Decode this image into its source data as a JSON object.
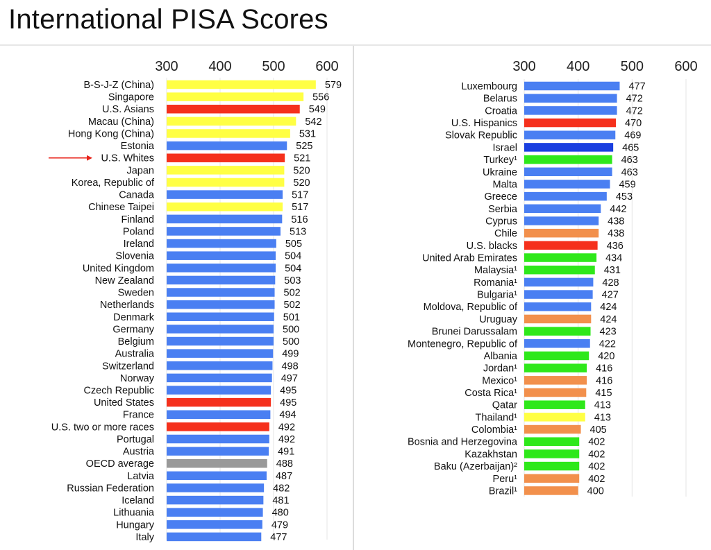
{
  "title": "International PISA Scores",
  "colors": {
    "blue": "#4a7ff2",
    "dark_blue": "#1a3fe0",
    "yellow": "#ffff44",
    "red": "#f5301c",
    "gray": "#999999",
    "green": "#2ee81a",
    "orange": "#f2904c",
    "arrow": "#e8231a"
  },
  "chart_data": [
    {
      "type": "bar",
      "orientation": "horizontal",
      "axis_ticks": [
        300,
        400,
        500,
        600
      ],
      "xlim": [
        300,
        600
      ],
      "grid": true,
      "highlight_arrow_category": "U.S. Whites",
      "bars": [
        {
          "label": "B-S-J-Z (China)",
          "value": 579,
          "color": "yellow"
        },
        {
          "label": "Singapore",
          "value": 556,
          "color": "yellow"
        },
        {
          "label": "U.S. Asians",
          "value": 549,
          "color": "red"
        },
        {
          "label": "Macau (China)",
          "value": 542,
          "color": "yellow"
        },
        {
          "label": "Hong Kong (China)",
          "value": 531,
          "color": "yellow"
        },
        {
          "label": "Estonia",
          "value": 525,
          "color": "blue"
        },
        {
          "label": "U.S. Whites",
          "value": 521,
          "color": "red"
        },
        {
          "label": "Japan",
          "value": 520,
          "color": "yellow"
        },
        {
          "label": "Korea, Republic of",
          "value": 520,
          "color": "yellow"
        },
        {
          "label": "Canada",
          "value": 517,
          "color": "blue"
        },
        {
          "label": "Chinese Taipei",
          "value": 517,
          "color": "yellow"
        },
        {
          "label": "Finland",
          "value": 516,
          "color": "blue"
        },
        {
          "label": "Poland",
          "value": 513,
          "color": "blue"
        },
        {
          "label": "Ireland",
          "value": 505,
          "color": "blue"
        },
        {
          "label": "Slovenia",
          "value": 504,
          "color": "blue"
        },
        {
          "label": "United Kingdom",
          "value": 504,
          "color": "blue"
        },
        {
          "label": "New Zealand",
          "value": 503,
          "color": "blue"
        },
        {
          "label": "Sweden",
          "value": 502,
          "color": "blue"
        },
        {
          "label": "Netherlands",
          "value": 502,
          "color": "blue"
        },
        {
          "label": "Denmark",
          "value": 501,
          "color": "blue"
        },
        {
          "label": "Germany",
          "value": 500,
          "color": "blue"
        },
        {
          "label": "Belgium",
          "value": 500,
          "color": "blue"
        },
        {
          "label": "Australia",
          "value": 499,
          "color": "blue"
        },
        {
          "label": "Switzerland",
          "value": 498,
          "color": "blue"
        },
        {
          "label": "Norway",
          "value": 497,
          "color": "blue"
        },
        {
          "label": "Czech Republic",
          "value": 495,
          "color": "blue"
        },
        {
          "label": "United States",
          "value": 495,
          "color": "red"
        },
        {
          "label": "France",
          "value": 494,
          "color": "blue"
        },
        {
          "label": "U.S. two or more races",
          "value": 492,
          "color": "red"
        },
        {
          "label": "Portugal",
          "value": 492,
          "color": "blue"
        },
        {
          "label": "Austria",
          "value": 491,
          "color": "blue"
        },
        {
          "label": "OECD average",
          "value": 488,
          "color": "gray"
        },
        {
          "label": "Latvia",
          "value": 487,
          "color": "blue"
        },
        {
          "label": "Russian Federation",
          "value": 482,
          "color": "blue"
        },
        {
          "label": "Iceland",
          "value": 481,
          "color": "blue"
        },
        {
          "label": "Lithuania",
          "value": 480,
          "color": "blue"
        },
        {
          "label": "Hungary",
          "value": 479,
          "color": "blue"
        },
        {
          "label": "Italy",
          "value": 477,
          "color": "blue"
        }
      ]
    },
    {
      "type": "bar",
      "orientation": "horizontal",
      "axis_ticks": [
        300,
        400,
        500,
        600
      ],
      "xlim": [
        300,
        600
      ],
      "grid": true,
      "bars": [
        {
          "label": "Luxembourg",
          "value": 477,
          "color": "blue"
        },
        {
          "label": "Belarus",
          "value": 472,
          "color": "blue"
        },
        {
          "label": "Croatia",
          "value": 472,
          "color": "blue"
        },
        {
          "label": "U.S. Hispanics",
          "value": 470,
          "color": "red"
        },
        {
          "label": "Slovak Republic",
          "value": 469,
          "color": "blue"
        },
        {
          "label": "Israel",
          "value": 465,
          "color": "dark_blue"
        },
        {
          "label": "Turkey¹",
          "value": 463,
          "color": "green"
        },
        {
          "label": "Ukraine",
          "value": 463,
          "color": "blue"
        },
        {
          "label": "Malta",
          "value": 459,
          "color": "blue"
        },
        {
          "label": "Greece",
          "value": 453,
          "color": "blue"
        },
        {
          "label": "Serbia",
          "value": 442,
          "color": "blue"
        },
        {
          "label": "Cyprus",
          "value": 438,
          "color": "blue"
        },
        {
          "label": "Chile",
          "value": 438,
          "color": "orange"
        },
        {
          "label": "U.S. blacks",
          "value": 436,
          "color": "red"
        },
        {
          "label": "United Arab Emirates",
          "value": 434,
          "color": "green"
        },
        {
          "label": "Malaysia¹",
          "value": 431,
          "color": "green"
        },
        {
          "label": "Romania¹",
          "value": 428,
          "color": "blue"
        },
        {
          "label": "Bulgaria¹",
          "value": 427,
          "color": "blue"
        },
        {
          "label": "Moldova, Republic of",
          "value": 424,
          "color": "blue"
        },
        {
          "label": "Uruguay",
          "value": 424,
          "color": "orange"
        },
        {
          "label": "Brunei Darussalam",
          "value": 423,
          "color": "green"
        },
        {
          "label": "Montenegro, Republic of",
          "value": 422,
          "color": "blue"
        },
        {
          "label": "Albania",
          "value": 420,
          "color": "green"
        },
        {
          "label": "Jordan¹",
          "value": 416,
          "color": "green"
        },
        {
          "label": "Mexico¹",
          "value": 416,
          "color": "orange"
        },
        {
          "label": "Costa Rica¹",
          "value": 415,
          "color": "orange"
        },
        {
          "label": "Qatar",
          "value": 413,
          "color": "green"
        },
        {
          "label": "Thailand¹",
          "value": 413,
          "color": "yellow"
        },
        {
          "label": "Colombia¹",
          "value": 405,
          "color": "orange"
        },
        {
          "label": "Bosnia and Herzegovina",
          "value": 402,
          "color": "green"
        },
        {
          "label": "Kazakhstan",
          "value": 402,
          "color": "green"
        },
        {
          "label": "Baku (Azerbaijan)²",
          "value": 402,
          "color": "green"
        },
        {
          "label": "Peru¹",
          "value": 402,
          "color": "orange"
        },
        {
          "label": "Brazil¹",
          "value": 400,
          "color": "orange"
        }
      ]
    }
  ]
}
